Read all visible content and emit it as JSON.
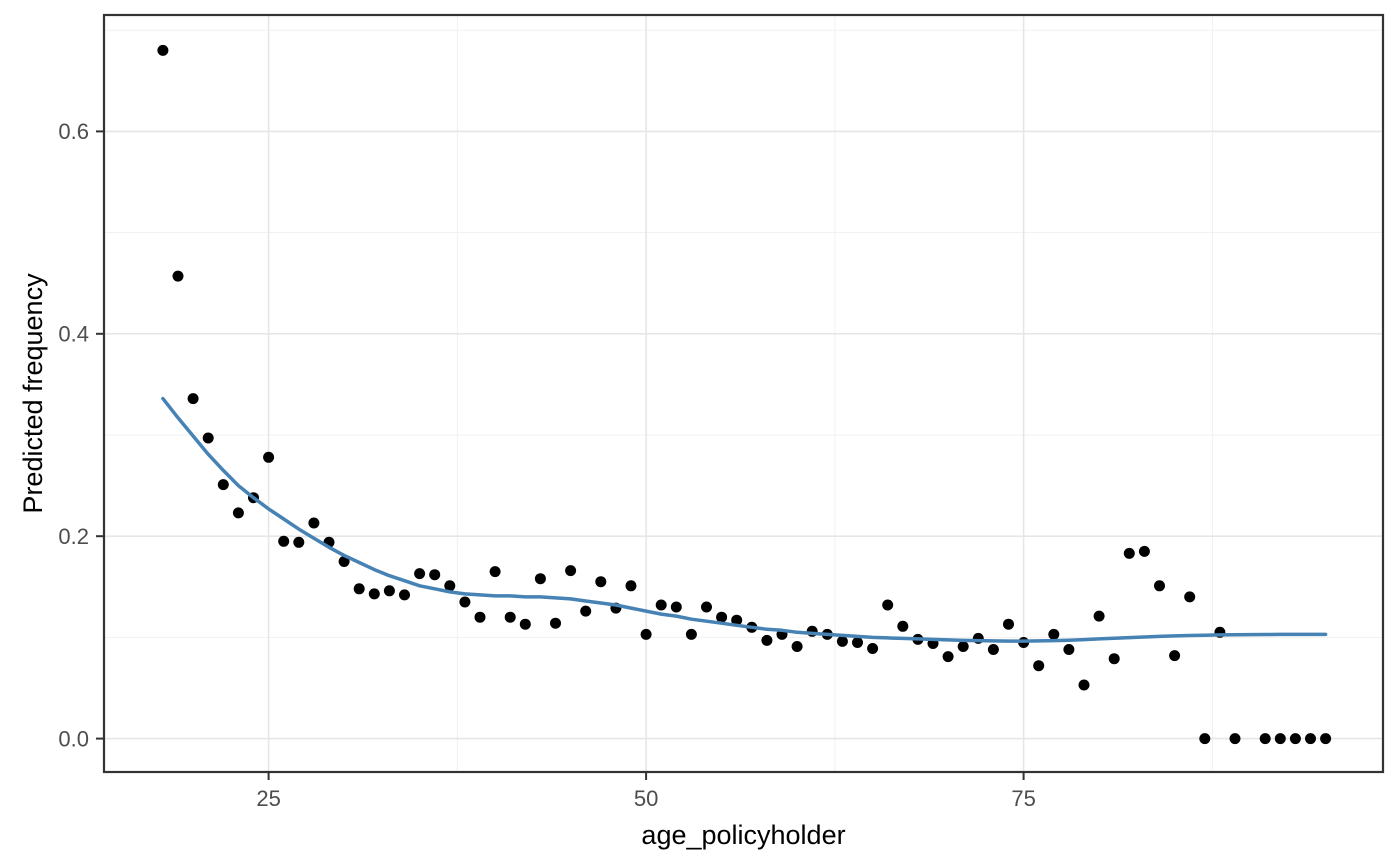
{
  "chart_data": {
    "type": "scatter",
    "xlabel": "age_policyholder",
    "ylabel": "Predicted frequency",
    "grid": true,
    "legend": false,
    "x_axis": {
      "range": [
        14.1,
        98.8
      ],
      "ticks": [
        25,
        50,
        75
      ],
      "tick_labels": [
        "25",
        "50",
        "75"
      ],
      "minor_ticks": [
        37.5,
        62.5,
        87.5
      ]
    },
    "y_axis": {
      "range": [
        -0.033,
        0.715
      ],
      "ticks": [
        0.0,
        0.2,
        0.4,
        0.6
      ],
      "tick_labels": [
        "0.0",
        "0.2",
        "0.4",
        "0.6"
      ],
      "minor_ticks": [
        0.1,
        0.3,
        0.5,
        0.7
      ]
    },
    "series": [
      {
        "name": "predicted-frequency-points",
        "type": "scatter",
        "color": "#000000",
        "points": [
          [
            18,
            0.68
          ],
          [
            19,
            0.457
          ],
          [
            20,
            0.336
          ],
          [
            21,
            0.297
          ],
          [
            22,
            0.251
          ],
          [
            23,
            0.223
          ],
          [
            24,
            0.238
          ],
          [
            25,
            0.278
          ],
          [
            26,
            0.195
          ],
          [
            27,
            0.194
          ],
          [
            28,
            0.213
          ],
          [
            29,
            0.194
          ],
          [
            30,
            0.175
          ],
          [
            31,
            0.148
          ],
          [
            32,
            0.143
          ],
          [
            33,
            0.146
          ],
          [
            34,
            0.142
          ],
          [
            35,
            0.163
          ],
          [
            36,
            0.162
          ],
          [
            37,
            0.151
          ],
          [
            38,
            0.135
          ],
          [
            39,
            0.12
          ],
          [
            40,
            0.165
          ],
          [
            41,
            0.12
          ],
          [
            42,
            0.113
          ],
          [
            43,
            0.158
          ],
          [
            44,
            0.114
          ],
          [
            45,
            0.166
          ],
          [
            46,
            0.126
          ],
          [
            47,
            0.155
          ],
          [
            48,
            0.129
          ],
          [
            49,
            0.151
          ],
          [
            50,
            0.103
          ],
          [
            51,
            0.132
          ],
          [
            52,
            0.13
          ],
          [
            53,
            0.103
          ],
          [
            54,
            0.13
          ],
          [
            55,
            0.12
          ],
          [
            56,
            0.117
          ],
          [
            57,
            0.11
          ],
          [
            58,
            0.097
          ],
          [
            59,
            0.103
          ],
          [
            60,
            0.091
          ],
          [
            61,
            0.106
          ],
          [
            62,
            0.103
          ],
          [
            63,
            0.096
          ],
          [
            64,
            0.095
          ],
          [
            65,
            0.089
          ],
          [
            66,
            0.132
          ],
          [
            67,
            0.111
          ],
          [
            68,
            0.098
          ],
          [
            69,
            0.094
          ],
          [
            70,
            0.081
          ],
          [
            71,
            0.091
          ],
          [
            72,
            0.099
          ],
          [
            73,
            0.088
          ],
          [
            74,
            0.113
          ],
          [
            75,
            0.095
          ],
          [
            76,
            0.072
          ],
          [
            77,
            0.103
          ],
          [
            78,
            0.088
          ],
          [
            79,
            0.053
          ],
          [
            80,
            0.121
          ],
          [
            81,
            0.079
          ],
          [
            82,
            0.183
          ],
          [
            83,
            0.185
          ],
          [
            84,
            0.151
          ],
          [
            85,
            0.082
          ],
          [
            86,
            0.14
          ],
          [
            87,
            0.0
          ],
          [
            88,
            0.105
          ],
          [
            89,
            0.0
          ],
          [
            91,
            0.0
          ],
          [
            92,
            0.0
          ],
          [
            93,
            0.0
          ],
          [
            94,
            0.0
          ],
          [
            95,
            0.0
          ]
        ]
      },
      {
        "name": "smooth-trend-line",
        "type": "line",
        "color": "#4682b4",
        "points": [
          [
            18,
            0.336
          ],
          [
            19,
            0.317
          ],
          [
            20,
            0.299
          ],
          [
            21,
            0.281
          ],
          [
            22,
            0.265
          ],
          [
            23,
            0.25
          ],
          [
            24,
            0.238
          ],
          [
            25,
            0.227
          ],
          [
            26,
            0.217
          ],
          [
            27,
            0.207
          ],
          [
            28,
            0.198
          ],
          [
            29,
            0.189
          ],
          [
            30,
            0.181
          ],
          [
            31,
            0.174
          ],
          [
            32,
            0.167
          ],
          [
            33,
            0.161
          ],
          [
            34,
            0.156
          ],
          [
            35,
            0.151
          ],
          [
            36,
            0.148
          ],
          [
            37,
            0.145
          ],
          [
            38,
            0.143
          ],
          [
            39,
            0.142
          ],
          [
            40,
            0.141
          ],
          [
            41,
            0.141
          ],
          [
            42,
            0.14
          ],
          [
            43,
            0.14
          ],
          [
            44,
            0.139
          ],
          [
            45,
            0.138
          ],
          [
            46,
            0.136
          ],
          [
            47,
            0.134
          ],
          [
            48,
            0.132
          ],
          [
            49,
            0.129
          ],
          [
            50,
            0.126
          ],
          [
            51,
            0.123
          ],
          [
            52,
            0.121
          ],
          [
            53,
            0.118
          ],
          [
            54,
            0.116
          ],
          [
            55,
            0.114
          ],
          [
            56,
            0.112
          ],
          [
            57,
            0.11
          ],
          [
            58,
            0.108
          ],
          [
            59,
            0.107
          ],
          [
            60,
            0.105
          ],
          [
            61,
            0.104
          ],
          [
            62,
            0.103
          ],
          [
            63,
            0.102
          ],
          [
            64,
            0.101
          ],
          [
            65,
            0.1
          ],
          [
            66,
            0.0995
          ],
          [
            67,
            0.099
          ],
          [
            68,
            0.0985
          ],
          [
            69,
            0.098
          ],
          [
            70,
            0.0975
          ],
          [
            71,
            0.097
          ],
          [
            72,
            0.0968
          ],
          [
            73,
            0.0965
          ],
          [
            74,
            0.0963
          ],
          [
            75,
            0.0963
          ],
          [
            76,
            0.0965
          ],
          [
            77,
            0.0968
          ],
          [
            78,
            0.0972
          ],
          [
            79,
            0.0978
          ],
          [
            80,
            0.0985
          ],
          [
            81,
            0.0992
          ],
          [
            82,
            0.0998
          ],
          [
            83,
            0.1004
          ],
          [
            84,
            0.101
          ],
          [
            85,
            0.1015
          ],
          [
            86,
            0.1019
          ],
          [
            87,
            0.1022
          ],
          [
            88,
            0.1025
          ],
          [
            89,
            0.1027
          ],
          [
            90,
            0.1028
          ],
          [
            91,
            0.1029
          ],
          [
            92,
            0.103
          ],
          [
            93,
            0.103
          ],
          [
            94,
            0.103
          ],
          [
            95,
            0.103
          ]
        ]
      }
    ],
    "style": {
      "background": "#ffffff",
      "panel_background": "#ffffff",
      "panel_border": "#333333",
      "grid_major": "#e6e6e6",
      "grid_minor": "#f1f1f1",
      "tick_color": "#333333",
      "tick_label_color": "#4d4d4d",
      "axis_title_color": "#000000",
      "point_color": "#000000",
      "smooth_color": "#4682b4"
    }
  }
}
